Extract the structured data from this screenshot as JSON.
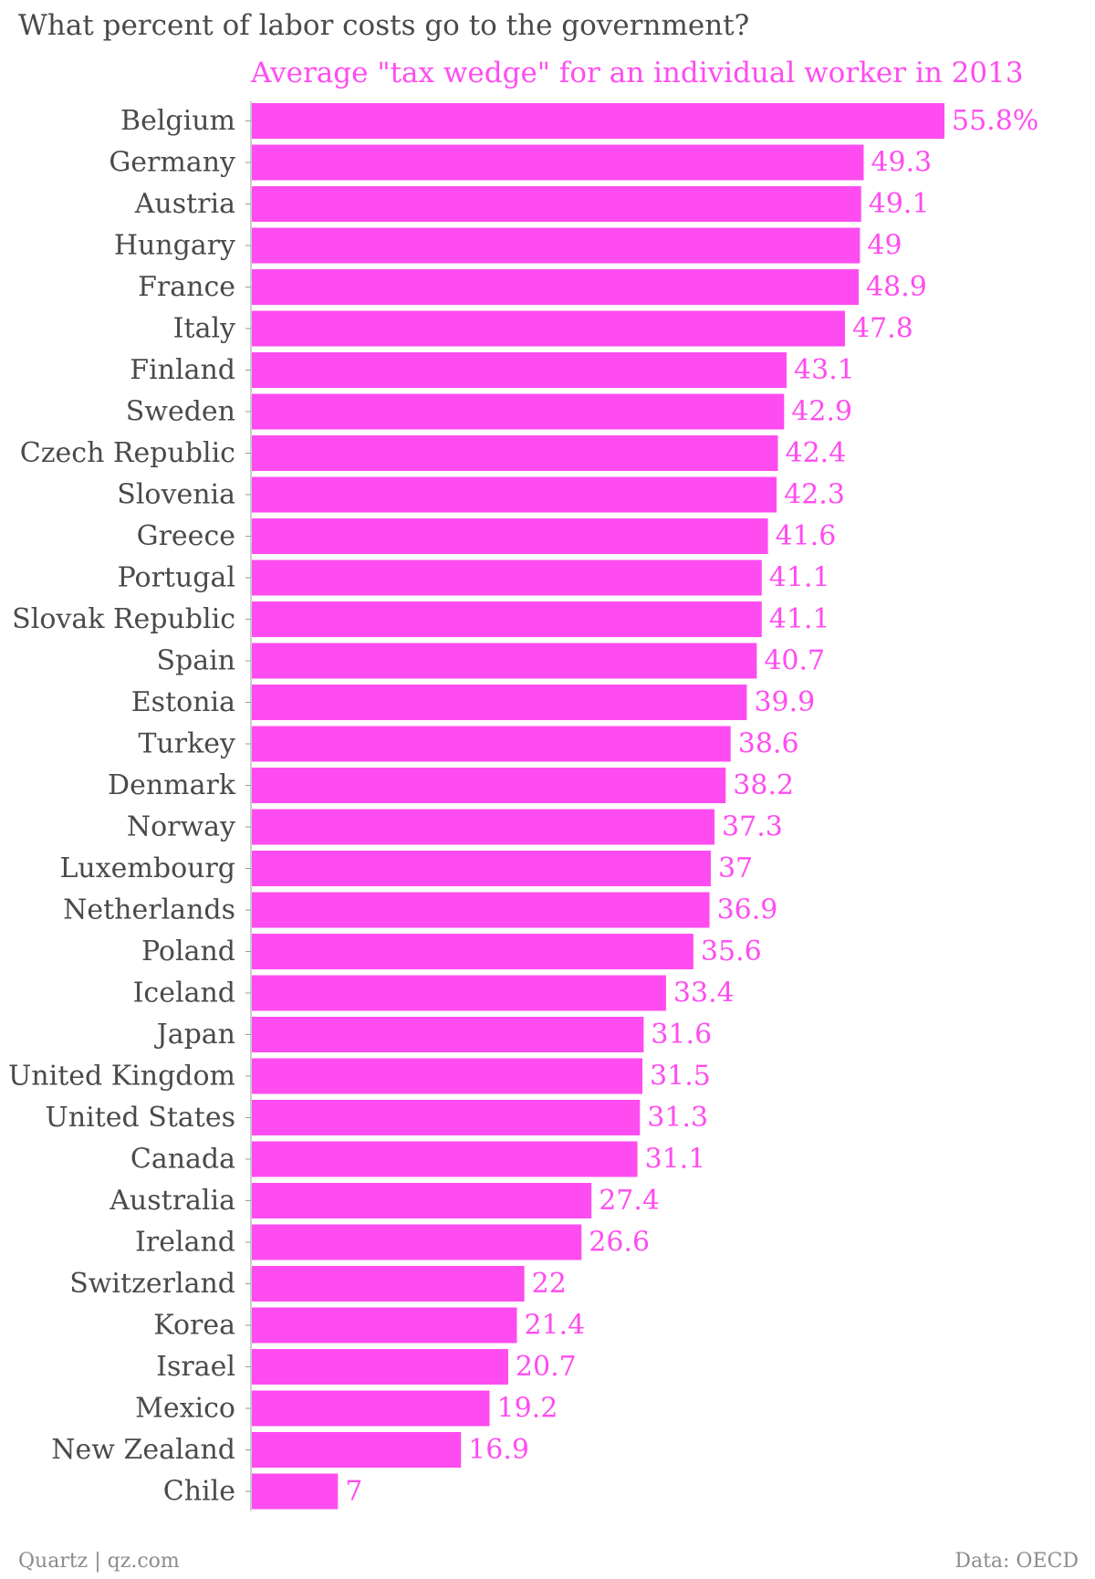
{
  "title": "What percent of labor costs go to the government?",
  "subtitle": "Average \"tax wedge\" for an individual worker in 2013",
  "footer": {
    "left": "Quartz | qz.com",
    "right": "Data: OECD"
  },
  "colors": {
    "bar": "#ff4cf0",
    "value_label": "#ff4cf0",
    "category_label": "#4a4a4a",
    "axis": "#9a9a9a"
  },
  "chart_data": {
    "type": "bar",
    "orientation": "horizontal",
    "categories": [
      "Belgium",
      "Germany",
      "Austria",
      "Hungary",
      "France",
      "Italy",
      "Finland",
      "Sweden",
      "Czech Republic",
      "Slovenia",
      "Greece",
      "Portugal",
      "Slovak Republic",
      "Spain",
      "Estonia",
      "Turkey",
      "Denmark",
      "Norway",
      "Luxembourg",
      "Netherlands",
      "Poland",
      "Iceland",
      "Japan",
      "United Kingdom",
      "United States",
      "Canada",
      "Australia",
      "Ireland",
      "Switzerland",
      "Korea",
      "Israel",
      "Mexico",
      "New Zealand",
      "Chile"
    ],
    "values": [
      55.8,
      49.3,
      49.1,
      49,
      48.9,
      47.8,
      43.1,
      42.9,
      42.4,
      42.3,
      41.6,
      41.1,
      41.1,
      40.7,
      39.9,
      38.6,
      38.2,
      37.3,
      37,
      36.9,
      35.6,
      33.4,
      31.6,
      31.5,
      31.3,
      31.1,
      27.4,
      26.6,
      22,
      21.4,
      20.7,
      19.2,
      16.9,
      7
    ],
    "value_labels": [
      "55.8%",
      "49.3",
      "49.1",
      "49",
      "48.9",
      "47.8",
      "43.1",
      "42.9",
      "42.4",
      "42.3",
      "41.6",
      "41.1",
      "41.1",
      "40.7",
      "39.9",
      "38.6",
      "38.2",
      "37.3",
      "37",
      "36.9",
      "35.6",
      "33.4",
      "31.6",
      "31.5",
      "31.3",
      "31.1",
      "27.4",
      "26.6",
      "22",
      "21.4",
      "20.7",
      "19.2",
      "16.9",
      "7"
    ],
    "title": "What percent of labor costs go to the government?",
    "subtitle": "Average \"tax wedge\" for an individual worker in 2013",
    "xlim": [
      0,
      55.8
    ],
    "grid": false,
    "legend": "none"
  }
}
